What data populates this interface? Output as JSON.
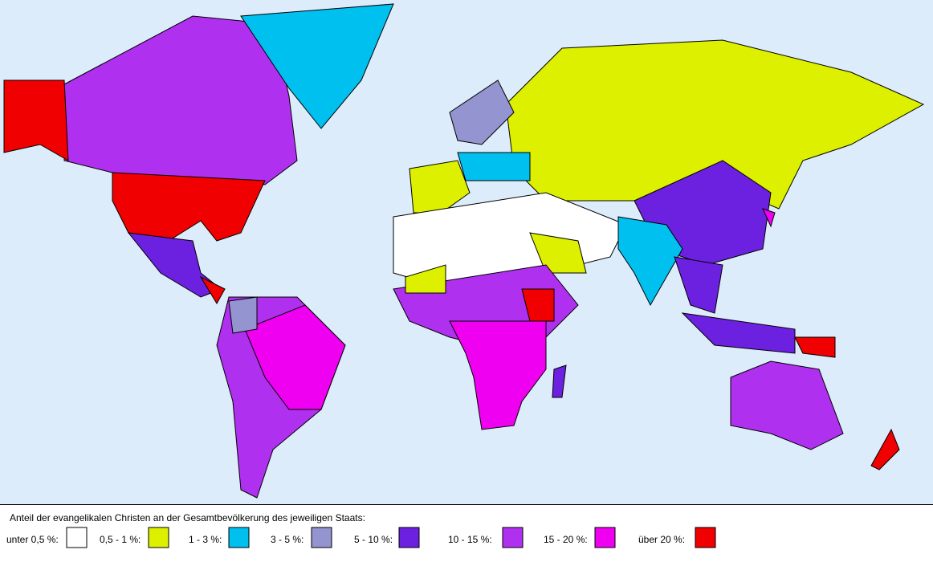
{
  "legend": {
    "title": "Anteil der evangelikalen Christen an der Gesamtbevölkerung des jeweiligen Staats:",
    "items": [
      {
        "label": "unter 0,5 %:",
        "color": "#ffffff"
      },
      {
        "label": "0,5 - 1 %:",
        "color": "#dcf000"
      },
      {
        "label": "1 - 3 %:",
        "color": "#00c0f0"
      },
      {
        "label": "3 - 5 %:",
        "color": "#9494d0"
      },
      {
        "label": "5 - 10 %:",
        "color": "#6c20e0"
      },
      {
        "label": "10 - 15 %:",
        "color": "#b030f0"
      },
      {
        "label": "15 - 20 %:",
        "color": "#f000f0"
      },
      {
        "label": "über 20 %:",
        "color": "#f00000"
      }
    ]
  }
}
